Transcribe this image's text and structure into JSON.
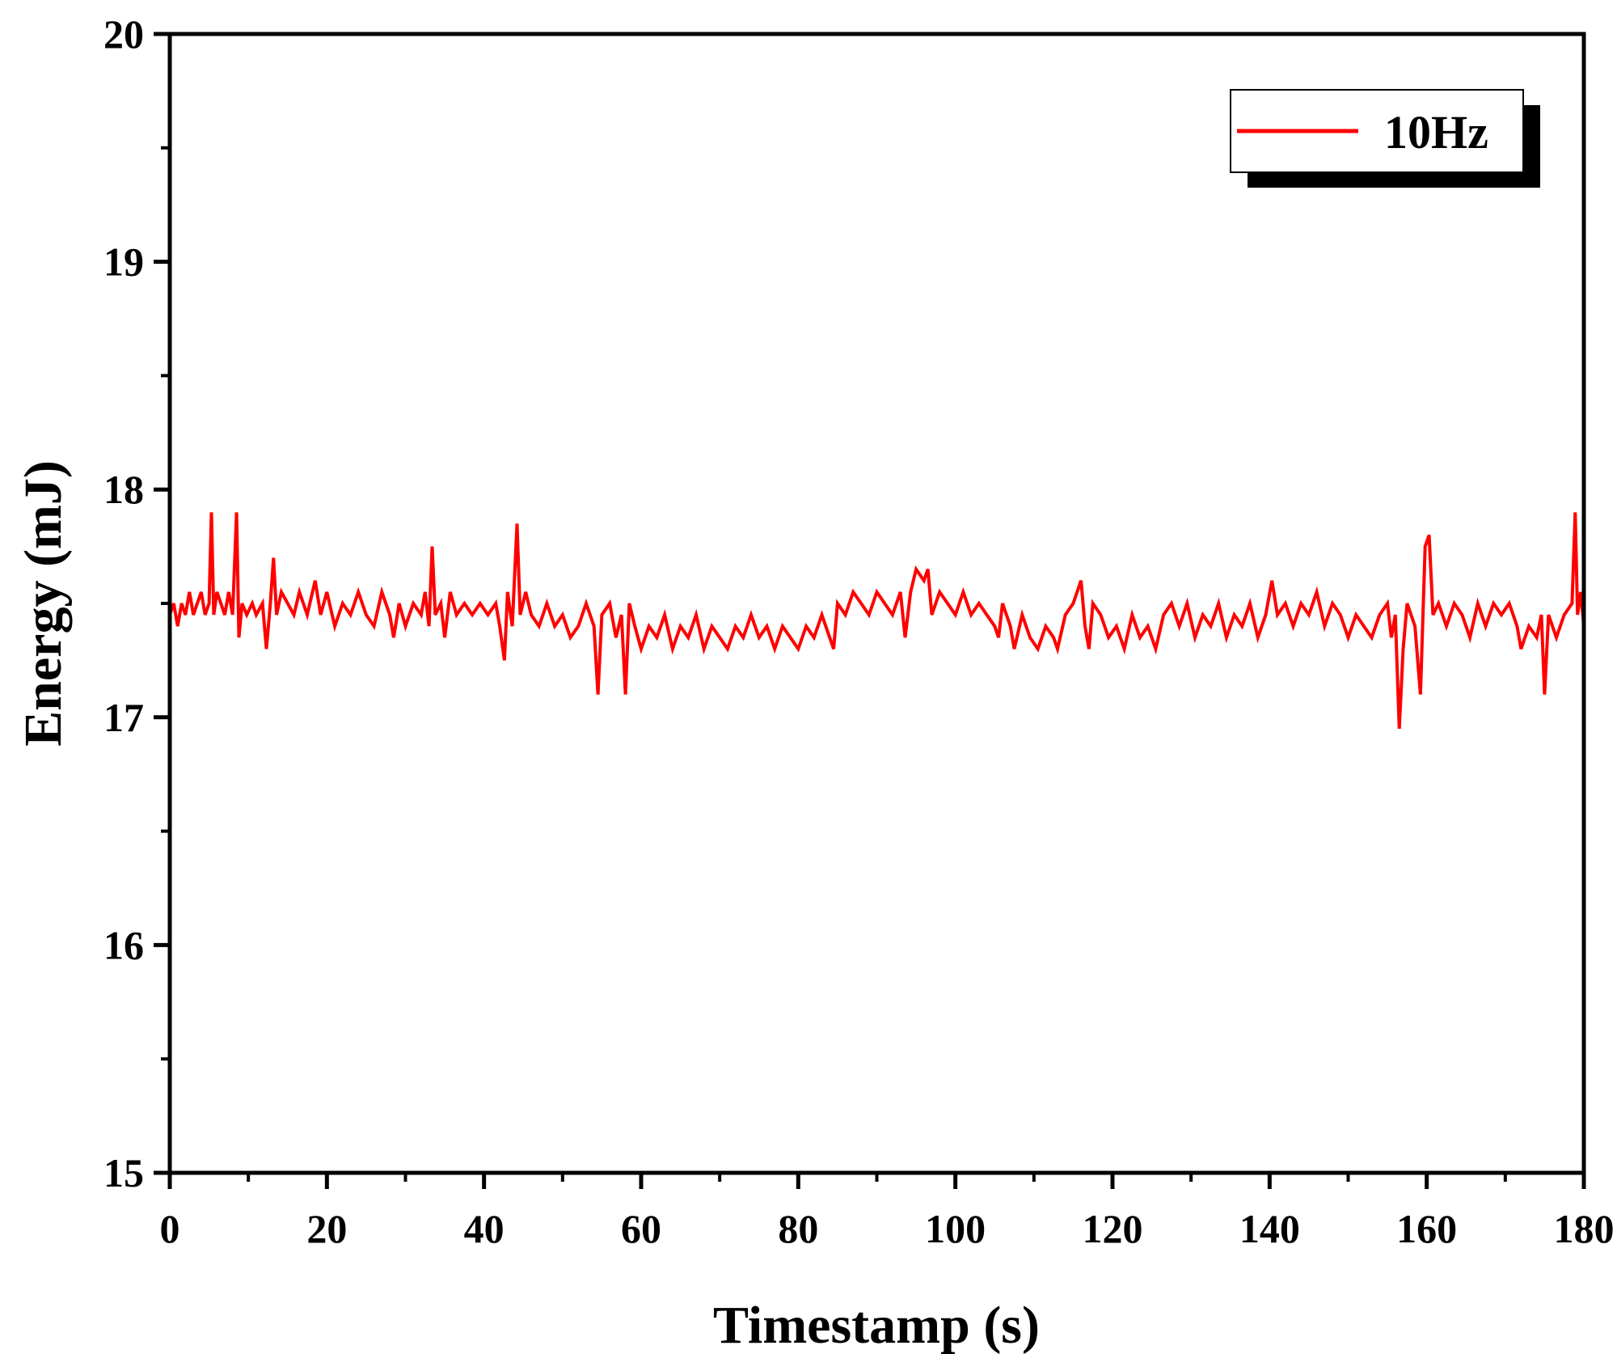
{
  "chart_data": {
    "type": "line",
    "title": "",
    "xlabel": "Timestamp (s)",
    "ylabel": "Energy (mJ)",
    "xlim": [
      0,
      180
    ],
    "ylim": [
      15,
      20
    ],
    "xticks": [
      0,
      20,
      40,
      60,
      80,
      100,
      120,
      140,
      160,
      180
    ],
    "yticks": [
      15,
      16,
      17,
      18,
      19,
      20
    ],
    "grid": false,
    "legend": {
      "position": "top-right"
    },
    "series": [
      {
        "name": "10Hz",
        "color": "#ff0000",
        "points": [
          [
            0,
            17.45
          ],
          [
            0.5,
            17.5
          ],
          [
            1,
            17.4
          ],
          [
            1.5,
            17.5
          ],
          [
            2,
            17.45
          ],
          [
            2.5,
            17.55
          ],
          [
            3,
            17.45
          ],
          [
            3.5,
            17.5
          ],
          [
            4,
            17.55
          ],
          [
            4.5,
            17.45
          ],
          [
            5,
            17.5
          ],
          [
            5.3,
            17.9
          ],
          [
            5.6,
            17.45
          ],
          [
            6,
            17.55
          ],
          [
            6.5,
            17.5
          ],
          [
            7,
            17.45
          ],
          [
            7.5,
            17.55
          ],
          [
            8,
            17.45
          ],
          [
            8.5,
            17.9
          ],
          [
            8.8,
            17.35
          ],
          [
            9.2,
            17.5
          ],
          [
            9.8,
            17.45
          ],
          [
            10.5,
            17.5
          ],
          [
            11,
            17.45
          ],
          [
            11.8,
            17.5
          ],
          [
            12.3,
            17.3
          ],
          [
            12.8,
            17.5
          ],
          [
            13.2,
            17.7
          ],
          [
            13.6,
            17.45
          ],
          [
            14.2,
            17.55
          ],
          [
            15,
            17.5
          ],
          [
            15.8,
            17.45
          ],
          [
            16.5,
            17.55
          ],
          [
            17.5,
            17.45
          ],
          [
            18.5,
            17.6
          ],
          [
            19.2,
            17.45
          ],
          [
            20,
            17.55
          ],
          [
            21,
            17.4
          ],
          [
            22,
            17.5
          ],
          [
            23,
            17.45
          ],
          [
            24,
            17.55
          ],
          [
            25,
            17.45
          ],
          [
            26,
            17.4
          ],
          [
            27,
            17.55
          ],
          [
            28,
            17.45
          ],
          [
            28.5,
            17.35
          ],
          [
            29.2,
            17.5
          ],
          [
            30,
            17.4
          ],
          [
            31,
            17.5
          ],
          [
            32,
            17.45
          ],
          [
            32.5,
            17.55
          ],
          [
            33,
            17.4
          ],
          [
            33.4,
            17.75
          ],
          [
            33.8,
            17.45
          ],
          [
            34.5,
            17.5
          ],
          [
            35,
            17.35
          ],
          [
            35.7,
            17.55
          ],
          [
            36.5,
            17.45
          ],
          [
            37.5,
            17.5
          ],
          [
            38.5,
            17.45
          ],
          [
            39.5,
            17.5
          ],
          [
            40.5,
            17.45
          ],
          [
            41.5,
            17.5
          ],
          [
            42,
            17.4
          ],
          [
            42.6,
            17.25
          ],
          [
            43,
            17.55
          ],
          [
            43.6,
            17.4
          ],
          [
            44.2,
            17.85
          ],
          [
            44.6,
            17.45
          ],
          [
            45.3,
            17.55
          ],
          [
            46,
            17.45
          ],
          [
            47,
            17.4
          ],
          [
            48,
            17.5
          ],
          [
            49,
            17.4
          ],
          [
            50,
            17.45
          ],
          [
            51,
            17.35
          ],
          [
            52,
            17.4
          ],
          [
            53,
            17.5
          ],
          [
            54,
            17.4
          ],
          [
            54.5,
            17.1
          ],
          [
            55,
            17.45
          ],
          [
            56,
            17.5
          ],
          [
            56.8,
            17.35
          ],
          [
            57.5,
            17.45
          ],
          [
            58,
            17.1
          ],
          [
            58.5,
            17.5
          ],
          [
            59.2,
            17.4
          ],
          [
            60,
            17.3
          ],
          [
            61,
            17.4
          ],
          [
            62,
            17.35
          ],
          [
            63,
            17.45
          ],
          [
            64,
            17.3
          ],
          [
            65,
            17.4
          ],
          [
            66,
            17.35
          ],
          [
            67,
            17.45
          ],
          [
            68,
            17.3
          ],
          [
            69,
            17.4
          ],
          [
            70,
            17.35
          ],
          [
            71,
            17.3
          ],
          [
            72,
            17.4
          ],
          [
            73,
            17.35
          ],
          [
            74,
            17.45
          ],
          [
            75,
            17.35
          ],
          [
            76,
            17.4
          ],
          [
            77,
            17.3
          ],
          [
            78,
            17.4
          ],
          [
            79,
            17.35
          ],
          [
            80,
            17.3
          ],
          [
            81,
            17.4
          ],
          [
            82,
            17.35
          ],
          [
            83,
            17.45
          ],
          [
            84,
            17.35
          ],
          [
            84.5,
            17.3
          ],
          [
            85,
            17.5
          ],
          [
            86,
            17.45
          ],
          [
            87,
            17.55
          ],
          [
            88,
            17.5
          ],
          [
            89,
            17.45
          ],
          [
            90,
            17.55
          ],
          [
            91,
            17.5
          ],
          [
            92,
            17.45
          ],
          [
            93,
            17.55
          ],
          [
            93.6,
            17.35
          ],
          [
            94.3,
            17.55
          ],
          [
            95,
            17.65
          ],
          [
            96,
            17.6
          ],
          [
            96.5,
            17.65
          ],
          [
            97,
            17.45
          ],
          [
            98,
            17.55
          ],
          [
            99,
            17.5
          ],
          [
            100,
            17.45
          ],
          [
            101,
            17.55
          ],
          [
            102,
            17.45
          ],
          [
            103,
            17.5
          ],
          [
            104,
            17.45
          ],
          [
            105,
            17.4
          ],
          [
            105.5,
            17.35
          ],
          [
            106,
            17.5
          ],
          [
            107,
            17.4
          ],
          [
            107.5,
            17.3
          ],
          [
            108.5,
            17.45
          ],
          [
            109.5,
            17.35
          ],
          [
            110.5,
            17.3
          ],
          [
            111.5,
            17.4
          ],
          [
            112.5,
            17.35
          ],
          [
            113,
            17.3
          ],
          [
            114,
            17.45
          ],
          [
            115,
            17.5
          ],
          [
            116,
            17.6
          ],
          [
            116.5,
            17.4
          ],
          [
            117,
            17.3
          ],
          [
            117.5,
            17.5
          ],
          [
            118.5,
            17.45
          ],
          [
            119.5,
            17.35
          ],
          [
            120.5,
            17.4
          ],
          [
            121.5,
            17.3
          ],
          [
            122.5,
            17.45
          ],
          [
            123.5,
            17.35
          ],
          [
            124.5,
            17.4
          ],
          [
            125.5,
            17.3
          ],
          [
            126.5,
            17.45
          ],
          [
            127.5,
            17.5
          ],
          [
            128.5,
            17.4
          ],
          [
            129.5,
            17.5
          ],
          [
            130.5,
            17.35
          ],
          [
            131.5,
            17.45
          ],
          [
            132.5,
            17.4
          ],
          [
            133.5,
            17.5
          ],
          [
            134.5,
            17.35
          ],
          [
            135.5,
            17.45
          ],
          [
            136.5,
            17.4
          ],
          [
            137.5,
            17.5
          ],
          [
            138.5,
            17.35
          ],
          [
            139.5,
            17.45
          ],
          [
            140.3,
            17.6
          ],
          [
            141,
            17.45
          ],
          [
            142,
            17.5
          ],
          [
            143,
            17.4
          ],
          [
            144,
            17.5
          ],
          [
            145,
            17.45
          ],
          [
            146,
            17.55
          ],
          [
            147,
            17.4
          ],
          [
            148,
            17.5
          ],
          [
            149,
            17.45
          ],
          [
            150,
            17.35
          ],
          [
            151,
            17.45
          ],
          [
            152,
            17.4
          ],
          [
            153,
            17.35
          ],
          [
            154,
            17.45
          ],
          [
            155,
            17.5
          ],
          [
            155.5,
            17.35
          ],
          [
            156,
            17.45
          ],
          [
            156.5,
            16.95
          ],
          [
            157,
            17.3
          ],
          [
            157.5,
            17.5
          ],
          [
            158.5,
            17.4
          ],
          [
            159.2,
            17.1
          ],
          [
            159.8,
            17.75
          ],
          [
            160.3,
            17.8
          ],
          [
            160.8,
            17.45
          ],
          [
            161.5,
            17.5
          ],
          [
            162.5,
            17.4
          ],
          [
            163.5,
            17.5
          ],
          [
            164.5,
            17.45
          ],
          [
            165.5,
            17.35
          ],
          [
            166.5,
            17.5
          ],
          [
            167.5,
            17.4
          ],
          [
            168.5,
            17.5
          ],
          [
            169.5,
            17.45
          ],
          [
            170.5,
            17.5
          ],
          [
            171.5,
            17.4
          ],
          [
            172,
            17.3
          ],
          [
            173,
            17.4
          ],
          [
            174,
            17.35
          ],
          [
            174.6,
            17.45
          ],
          [
            175,
            17.1
          ],
          [
            175.5,
            17.45
          ],
          [
            176.5,
            17.35
          ],
          [
            177.5,
            17.45
          ],
          [
            178.5,
            17.5
          ],
          [
            178.9,
            17.9
          ],
          [
            179.2,
            17.45
          ],
          [
            179.6,
            17.55
          ],
          [
            180,
            17.4
          ]
        ]
      }
    ]
  }
}
